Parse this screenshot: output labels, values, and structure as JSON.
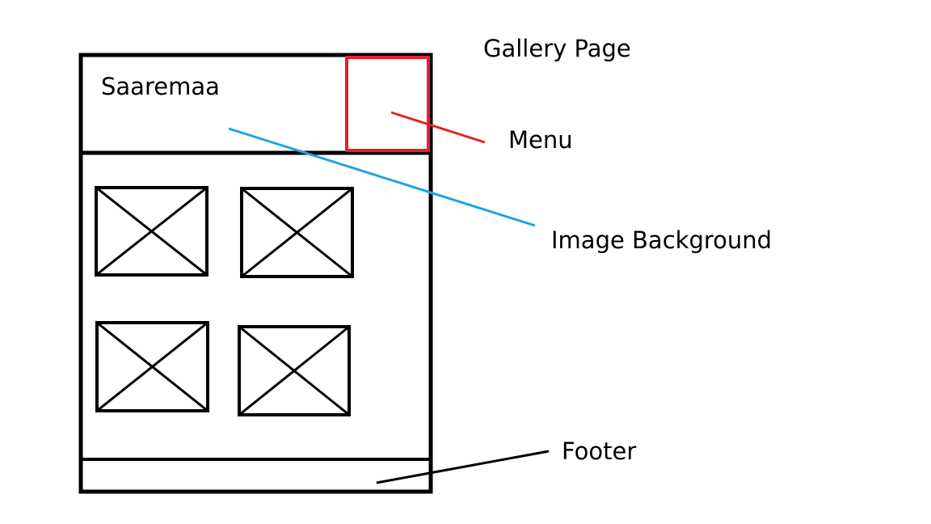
{
  "page_title": "Gallery Page",
  "site_title": "Saaremaa",
  "annotations": {
    "menu": "Menu",
    "image_background": "Image Background",
    "footer": "Footer"
  },
  "gallery": {
    "image_placeholder_count": 4,
    "icon": "crossed-box-image-placeholder-icon"
  },
  "colors": {
    "outline": "#000000",
    "menu_highlight": "#e8202a",
    "image_background_pointer": "#1ea3e6",
    "footer_pointer": "#000000"
  }
}
